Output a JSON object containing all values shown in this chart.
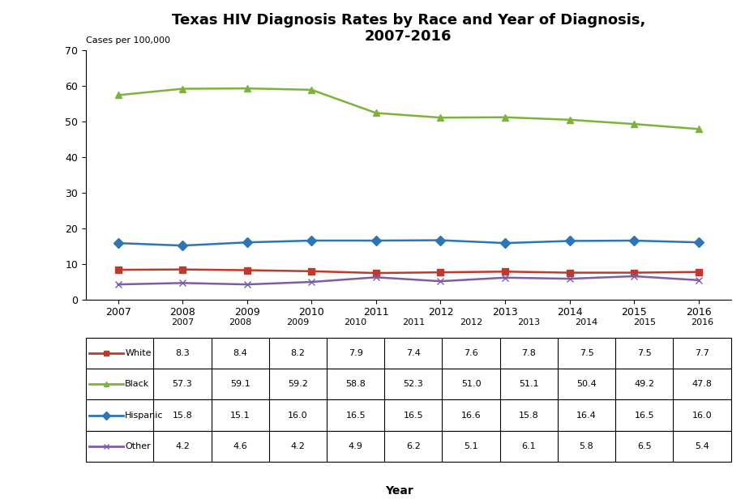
{
  "title": "Texas HIV Diagnosis Rates by Race and Year of Diagnosis,\n2007-2016",
  "ylabel": "Cases per 100,000",
  "xlabel": "Year",
  "years": [
    2007,
    2008,
    2009,
    2010,
    2011,
    2012,
    2013,
    2014,
    2015,
    2016
  ],
  "series_order": [
    "White",
    "Black",
    "Hispanic",
    "Other"
  ],
  "series": {
    "White": [
      8.3,
      8.4,
      8.2,
      7.9,
      7.4,
      7.6,
      7.8,
      7.5,
      7.5,
      7.7
    ],
    "Black": [
      57.3,
      59.1,
      59.2,
      58.8,
      52.3,
      51.0,
      51.1,
      50.4,
      49.2,
      47.8
    ],
    "Hispanic": [
      15.8,
      15.1,
      16.0,
      16.5,
      16.5,
      16.6,
      15.8,
      16.4,
      16.5,
      16.0
    ],
    "Other": [
      4.2,
      4.6,
      4.2,
      4.9,
      6.2,
      5.1,
      6.1,
      5.8,
      6.5,
      5.4
    ]
  },
  "colors": {
    "White": "#c0392b",
    "Black": "#7db33a",
    "Hispanic": "#2e75b6",
    "Other": "#7b5ea7"
  },
  "markers": {
    "White": "s",
    "Black": "^",
    "Hispanic": "D",
    "Other": "x"
  },
  "ylim": [
    0,
    70
  ],
  "yticks": [
    0,
    10,
    20,
    30,
    40,
    50,
    60,
    70
  ],
  "background_color": "#ffffff",
  "title_fontsize": 13,
  "axis_label_fontsize": 10,
  "tick_fontsize": 9,
  "table_rows": [
    [
      "White",
      "8.3",
      "8.4",
      "8.2",
      "7.9",
      "7.4",
      "7.6",
      "7.8",
      "7.5",
      "7.5",
      "7.7"
    ],
    [
      "Black",
      "57.3",
      "59.1",
      "59.2",
      "58.8",
      "52.3",
      "51.0",
      "51.1",
      "50.4",
      "49.2",
      "47.8"
    ],
    [
      "Hispanic",
      "15.8",
      "15.1",
      "16.0",
      "16.5",
      "16.5",
      "16.6",
      "15.8",
      "16.4",
      "16.5",
      "16.0"
    ],
    [
      "Other",
      "4.2",
      "4.6",
      "4.2",
      "4.9",
      "6.2",
      "5.1",
      "6.1",
      "5.8",
      "6.5",
      "5.4"
    ]
  ]
}
